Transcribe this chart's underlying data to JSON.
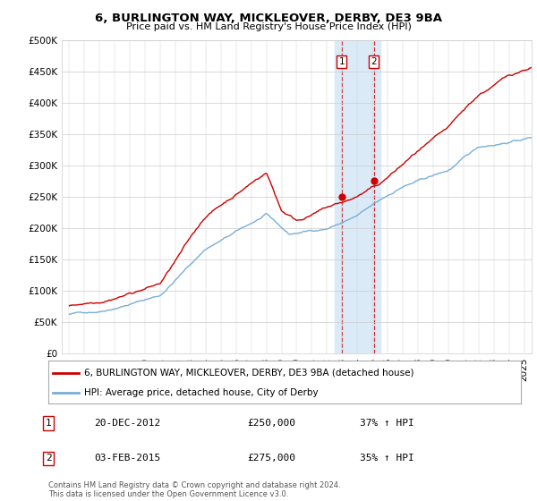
{
  "title": "6, BURLINGTON WAY, MICKLEOVER, DERBY, DE3 9BA",
  "subtitle": "Price paid vs. HM Land Registry's House Price Index (HPI)",
  "legend_line1": "6, BURLINGTON WAY, MICKLEOVER, DERBY, DE3 9BA (detached house)",
  "legend_line2": "HPI: Average price, detached house, City of Derby",
  "footer": "Contains HM Land Registry data © Crown copyright and database right 2024.\nThis data is licensed under the Open Government Licence v3.0.",
  "transaction1_date": "20-DEC-2012",
  "transaction1_price": "£250,000",
  "transaction1_hpi": "37% ↑ HPI",
  "transaction2_date": "03-FEB-2015",
  "transaction2_price": "£275,000",
  "transaction2_hpi": "35% ↑ HPI",
  "property_color": "#cc0000",
  "hpi_color": "#7aaed6",
  "highlight_color": "#daeaf7",
  "ylim": [
    0,
    500000
  ],
  "yticks": [
    0,
    50000,
    100000,
    150000,
    200000,
    250000,
    300000,
    350000,
    400000,
    450000,
    500000
  ],
  "transaction1_x": 2012.97,
  "transaction1_y": 250000,
  "transaction2_x": 2015.08,
  "transaction2_y": 275000,
  "highlight_x1": 2012.5,
  "highlight_x2": 2015.5,
  "xmin": 1994.5,
  "xmax": 2025.5
}
